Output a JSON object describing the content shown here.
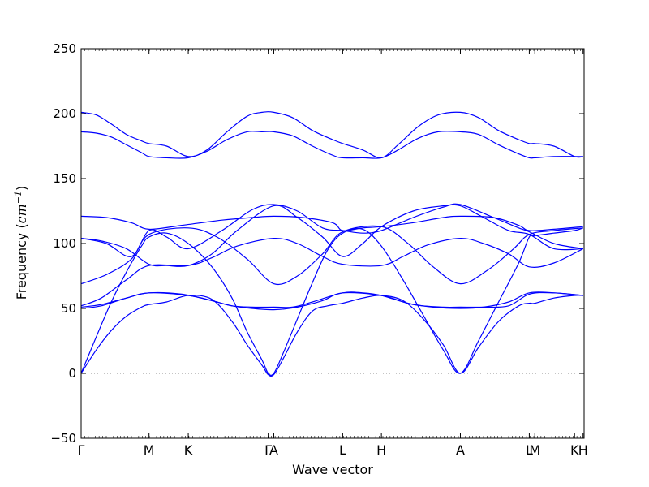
{
  "chart_data": {
    "type": "line",
    "title": "",
    "xlabel": "Wave vector",
    "ylabel_prefix": "Frequency (",
    "ylabel_unit": "cm",
    "ylabel_exp": "−1",
    "ylabel_suffix": ")",
    "ylim": [
      -50,
      250
    ],
    "yticks": [
      -50,
      0,
      50,
      100,
      150,
      200,
      250
    ],
    "ytick_labels": [
      "−50",
      "0",
      "50",
      "100",
      "150",
      "200",
      "250"
    ],
    "xlim": [
      0,
      1
    ],
    "xticks": [
      {
        "label": "Γ",
        "pos": 0.0
      },
      {
        "label": "M",
        "pos": 0.135
      },
      {
        "label": "K",
        "pos": 0.213
      },
      {
        "label": "Γ",
        "pos": 0.372
      },
      {
        "label": "A",
        "pos": 0.383
      },
      {
        "label": "L",
        "pos": 0.52
      },
      {
        "label": "H",
        "pos": 0.597
      },
      {
        "label": "A",
        "pos": 0.754
      },
      {
        "label": "L",
        "pos": 0.891
      },
      {
        "label": "M",
        "pos": 0.902
      },
      {
        "label": "K",
        "pos": 0.981
      },
      {
        "label": "H",
        "pos": 0.998
      }
    ],
    "zero_line": 0,
    "series": [
      {
        "x": [
          0,
          0.03,
          0.06,
          0.09,
          0.12,
          0.135,
          0.17,
          0.213,
          0.26,
          0.3,
          0.33,
          0.36,
          0.372,
          0.383,
          0.4,
          0.43,
          0.46,
          0.49,
          0.52,
          0.56,
          0.597,
          0.64,
          0.68,
          0.72,
          0.754,
          0.79,
          0.83,
          0.87,
          0.891,
          0.902,
          0.94,
          0.981,
          0.998
        ],
        "y": [
          0,
          18,
          33,
          44,
          51,
          53,
          55,
          60,
          57,
          40,
          22,
          6,
          -1,
          -1,
          10,
          32,
          48,
          52,
          54,
          58,
          60,
          56,
          42,
          22,
          0,
          20,
          40,
          52,
          54,
          54,
          58,
          60,
          60
        ]
      },
      {
        "x": [
          0,
          0.03,
          0.06,
          0.09,
          0.12,
          0.135,
          0.17,
          0.213,
          0.26,
          0.3,
          0.33,
          0.36,
          0.372,
          0.383,
          0.4,
          0.43,
          0.46,
          0.49,
          0.52,
          0.56,
          0.597,
          0.64,
          0.68,
          0.72,
          0.754,
          0.79,
          0.83,
          0.87,
          0.891,
          0.902,
          0.94,
          0.981,
          0.998
        ],
        "y": [
          0,
          28,
          55,
          78,
          98,
          105,
          108,
          100,
          82,
          58,
          32,
          10,
          0,
          0,
          14,
          42,
          70,
          95,
          108,
          111,
          98,
          72,
          45,
          18,
          0,
          25,
          55,
          85,
          105,
          106,
          108,
          110,
          112
        ]
      },
      {
        "x": [
          0,
          0.04,
          0.09,
          0.135,
          0.2,
          0.26,
          0.3,
          0.34,
          0.383,
          0.42,
          0.46,
          0.52,
          0.56,
          0.597,
          0.66,
          0.72,
          0.754,
          0.8,
          0.85,
          0.891,
          0.94,
          0.998
        ],
        "y": [
          50,
          52,
          58,
          62,
          61,
          56,
          52,
          51,
          51,
          51,
          55,
          62,
          62,
          60,
          53,
          51,
          51,
          51,
          52,
          61,
          62,
          60
        ]
      },
      {
        "x": [
          0,
          0.04,
          0.09,
          0.135,
          0.213,
          0.26,
          0.3,
          0.34,
          0.383,
          0.43,
          0.48,
          0.52,
          0.597,
          0.65,
          0.7,
          0.754,
          0.8,
          0.85,
          0.891,
          0.94,
          0.998
        ],
        "y": [
          51,
          53,
          58,
          62,
          60,
          56,
          52,
          50,
          49,
          51,
          56,
          62,
          60,
          54,
          51,
          50,
          51,
          55,
          62,
          62,
          60
        ]
      },
      {
        "x": [
          0,
          0.04,
          0.09,
          0.135,
          0.213,
          0.26,
          0.31,
          0.383,
          0.43,
          0.48,
          0.52,
          0.597,
          0.64,
          0.69,
          0.754,
          0.8,
          0.85,
          0.891,
          0.94,
          0.998
        ],
        "y": [
          52,
          58,
          72,
          83,
          83,
          89,
          98,
          104,
          100,
          90,
          84,
          83,
          90,
          99,
          104,
          100,
          92,
          82,
          85,
          96
        ]
      },
      {
        "x": [
          0,
          0.05,
          0.1,
          0.135,
          0.213,
          0.27,
          0.33,
          0.383,
          0.43,
          0.48,
          0.52,
          0.597,
          0.65,
          0.7,
          0.754,
          0.81,
          0.86,
          0.891,
          0.94,
          0.998
        ],
        "y": [
          69,
          76,
          88,
          107,
          112,
          105,
          88,
          69,
          75,
          92,
          109,
          113,
          100,
          82,
          69,
          80,
          96,
          107,
          110,
          112
        ]
      },
      {
        "x": [
          0,
          0.04,
          0.09,
          0.135,
          0.17,
          0.213,
          0.26,
          0.31,
          0.383,
          0.43,
          0.48,
          0.52,
          0.56,
          0.597,
          0.66,
          0.72,
          0.754,
          0.8,
          0.85,
          0.891,
          0.94,
          0.998
        ],
        "y": [
          104,
          102,
          96,
          84,
          83,
          83,
          92,
          110,
          129,
          120,
          105,
          90,
          100,
          113,
          125,
          129,
          129,
          120,
          110,
          107,
          96,
          96
        ]
      },
      {
        "x": [
          0,
          0.05,
          0.1,
          0.135,
          0.17,
          0.213,
          0.28,
          0.34,
          0.383,
          0.43,
          0.48,
          0.52,
          0.56,
          0.597,
          0.66,
          0.72,
          0.754,
          0.82,
          0.87,
          0.891,
          0.94,
          0.998
        ],
        "y": [
          104,
          100,
          90,
          110,
          105,
          96,
          110,
          126,
          130,
          125,
          112,
          110,
          108,
          110,
          120,
          128,
          130,
          120,
          112,
          109,
          100,
          96
        ]
      },
      {
        "x": [
          0,
          0.05,
          0.1,
          0.135,
          0.2,
          0.28,
          0.34,
          0.383,
          0.44,
          0.5,
          0.52,
          0.56,
          0.597,
          0.66,
          0.72,
          0.754,
          0.82,
          0.87,
          0.891,
          0.94,
          0.998
        ],
        "y": [
          121,
          120,
          116,
          111,
          114,
          118,
          120,
          121,
          120,
          116,
          110,
          112,
          113,
          116,
          120,
          121,
          120,
          114,
          110,
          111,
          113
        ]
      },
      {
        "x": [
          0,
          0.03,
          0.06,
          0.09,
          0.12,
          0.135,
          0.17,
          0.213,
          0.25,
          0.29,
          0.33,
          0.36,
          0.383,
          0.42,
          0.46,
          0.5,
          0.52,
          0.56,
          0.597,
          0.63,
          0.67,
          0.71,
          0.754,
          0.79,
          0.83,
          0.87,
          0.891,
          0.902,
          0.94,
          0.981,
          0.998
        ],
        "y": [
          186,
          185,
          182,
          176,
          170,
          167,
          166,
          166,
          171,
          180,
          186,
          186,
          186,
          183,
          175,
          168,
          166,
          166,
          166,
          172,
          181,
          186,
          186,
          184,
          176,
          169,
          166,
          166,
          167,
          167,
          167
        ]
      },
      {
        "x": [
          0,
          0.03,
          0.06,
          0.09,
          0.12,
          0.135,
          0.17,
          0.213,
          0.25,
          0.29,
          0.33,
          0.36,
          0.383,
          0.42,
          0.46,
          0.5,
          0.52,
          0.56,
          0.597,
          0.63,
          0.67,
          0.71,
          0.754,
          0.79,
          0.83,
          0.87,
          0.891,
          0.902,
          0.94,
          0.981,
          0.998
        ],
        "y": [
          201,
          199,
          192,
          184,
          179,
          177,
          175,
          167,
          172,
          186,
          198,
          201,
          201,
          197,
          187,
          180,
          177,
          172,
          166,
          176,
          190,
          199,
          201,
          197,
          187,
          180,
          177,
          177,
          175,
          167,
          167
        ]
      }
    ]
  },
  "colors": {
    "line": "#0000ff",
    "axis": "#000000",
    "zero_line": "#888888"
  }
}
